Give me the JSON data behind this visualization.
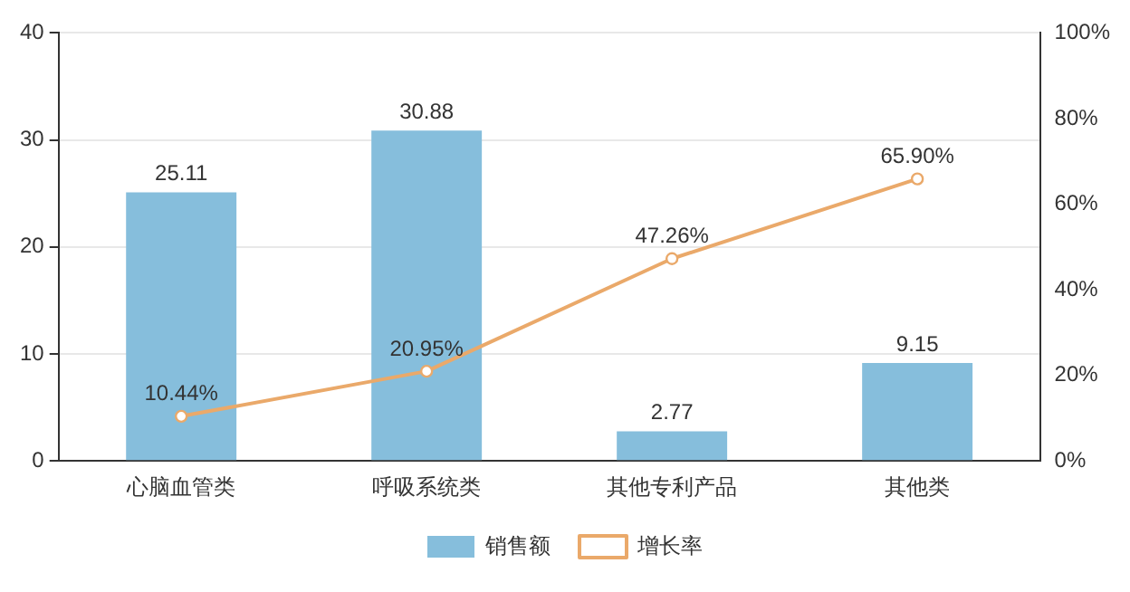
{
  "chart_data": {
    "type": "bar",
    "categories": [
      "心脑血管类",
      "呼吸系统类",
      "其他专利产品",
      "其他类"
    ],
    "series": [
      {
        "name": "销售额",
        "color": "#86bedc",
        "values": [
          25.11,
          30.88,
          2.77,
          9.15
        ],
        "value_labels": [
          "25.11",
          "30.88",
          "2.77",
          "9.15"
        ]
      },
      {
        "name": "增长率",
        "type": "line",
        "axis": "y2",
        "color": "#eaa96a",
        "values": [
          10.44,
          20.95,
          47.26,
          65.9
        ],
        "value_labels": [
          "10.44%",
          "20.95%",
          "47.26%",
          "65.90%"
        ],
        "marker": "circle"
      }
    ],
    "ylim": [
      0,
      40
    ],
    "yticks": [
      0,
      10,
      20,
      30,
      40
    ],
    "y2lim": [
      0,
      100
    ],
    "y2ticks": [
      {
        "value": 0,
        "label": "0%"
      },
      {
        "value": 20,
        "label": "20%"
      },
      {
        "value": 40,
        "label": "40%"
      },
      {
        "value": 60,
        "label": "60%"
      },
      {
        "value": 80,
        "label": "80%"
      },
      {
        "value": 100,
        "label": "100%"
      }
    ],
    "grid": "y",
    "legend": "bottom"
  }
}
